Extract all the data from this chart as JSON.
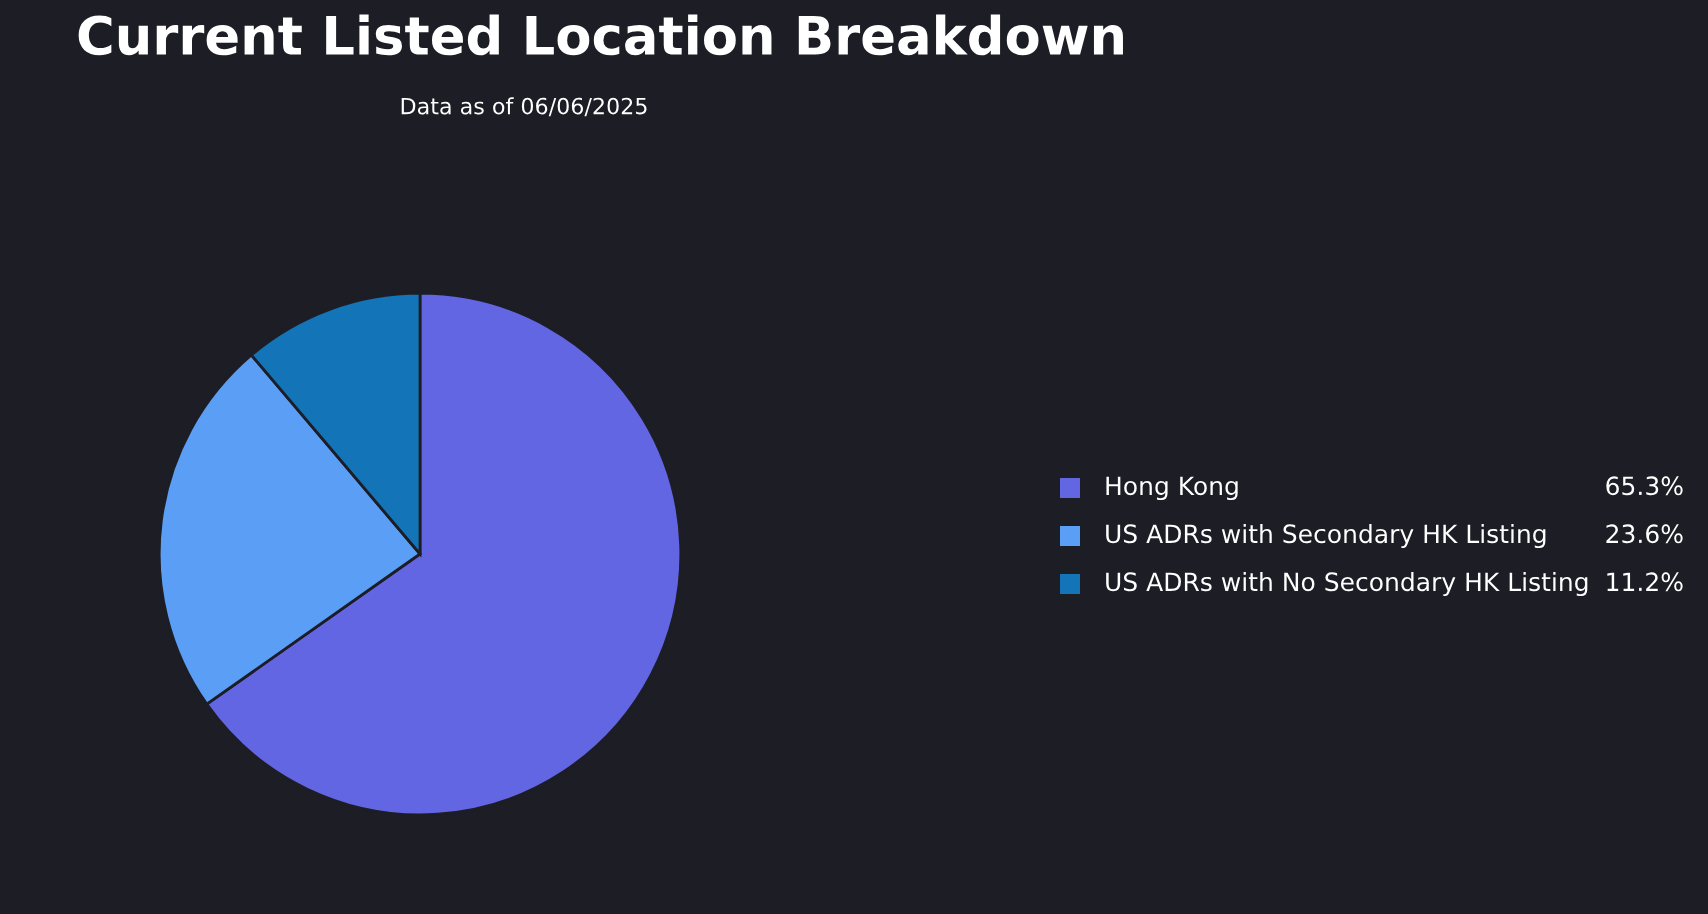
{
  "chart_data": {
    "type": "pie",
    "title": "Current Listed Location Breakdown",
    "subtitle": "Data as of 06/06/2025",
    "categories": [
      "Hong Kong",
      "US ADRs with Secondary HK Listing",
      "US ADRs with No Secondary HK Listing"
    ],
    "values": [
      65.3,
      23.6,
      11.2
    ],
    "colors": [
      "#6366e3",
      "#5a9ef5",
      "#1474b8"
    ],
    "value_labels": [
      "65.3%",
      "23.6%",
      "11.2%"
    ],
    "legend": "right"
  }
}
